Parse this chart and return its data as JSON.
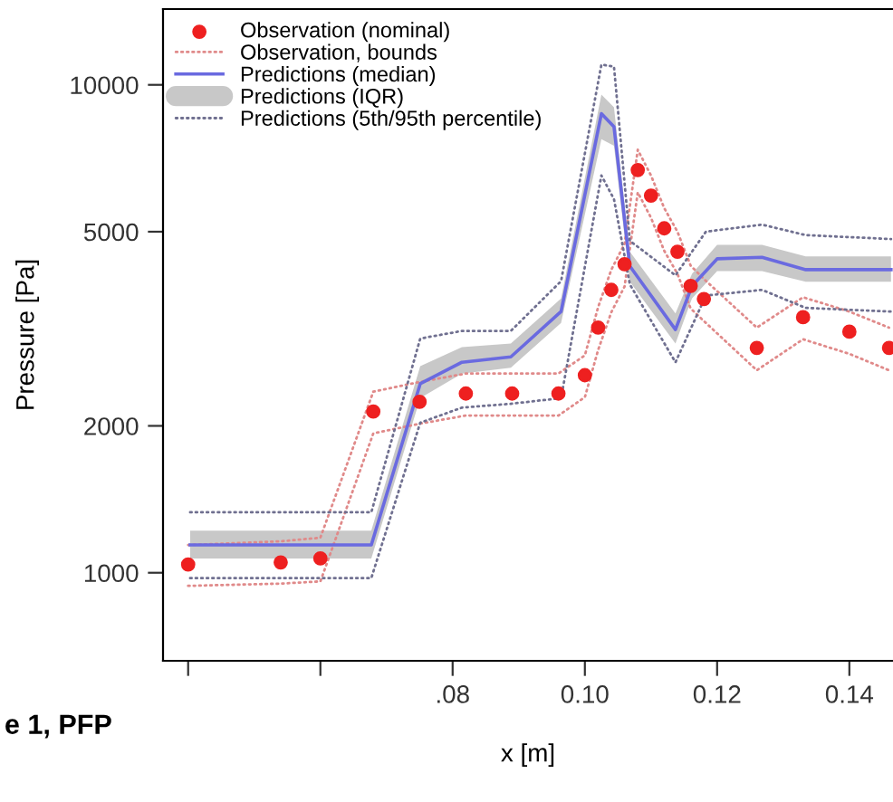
{
  "chart_data": {
    "type": "line",
    "xlabel": "x [m]",
    "ylabel": "Pressure [Pa]",
    "annotations": [
      "e 1, PFP"
    ],
    "log": "y",
    "xlim": [
      0.0362,
      0.1466
    ],
    "ylim": [
      660,
      14300
    ],
    "xticks": [
      {
        "value": 0.04,
        "label": null
      },
      {
        "value": 0.06,
        "label": null
      },
      {
        "value": 0.08,
        "label": ".08"
      },
      {
        "value": 0.1,
        "label": "0.10"
      },
      {
        "value": 0.12,
        "label": "0.12"
      },
      {
        "value": 0.14,
        "label": "0.14"
      }
    ],
    "yticks": [
      1000,
      2000,
      5000,
      10000
    ],
    "grid": false,
    "legend": "top left",
    "series": [
      {
        "name": "Observation (nominal)",
        "type": "scatter",
        "marker": "circle",
        "color": "#ee2020",
        "x": [
          0.04,
          0.054,
          0.06,
          0.068,
          0.075,
          0.082,
          0.089,
          0.096,
          0.1,
          0.102,
          0.104,
          0.106,
          0.108,
          0.11,
          0.112,
          0.114,
          0.116,
          0.118,
          0.126,
          0.133,
          0.14,
          0.146
        ],
        "values": [
          1040,
          1050,
          1070,
          2140,
          2240,
          2330,
          2330,
          2330,
          2540,
          3180,
          3800,
          4290,
          6690,
          5930,
          5080,
          4550,
          3870,
          3640,
          2890,
          3340,
          3120,
          2890
        ]
      },
      {
        "name": "Observation, bounds",
        "type": "line",
        "line_style": "dotted",
        "color": "#e08a8a",
        "x": [
          0.04,
          0.054,
          0.06,
          0.068,
          0.075,
          0.082,
          0.089,
          0.096,
          0.1,
          0.102,
          0.104,
          0.106,
          0.108,
          0.11,
          0.112,
          0.114,
          0.116,
          0.118,
          0.126,
          0.133,
          0.14,
          0.146
        ],
        "values": [
          1140,
          1160,
          1180,
          2350,
          2460,
          2560,
          2560,
          2560,
          2790,
          3500,
          4180,
          4720,
          7360,
          6520,
          5590,
          5000,
          4260,
          4000,
          3180,
          3670,
          3430,
          3180
        ]
      },
      {
        "type": "line",
        "line_style": "dotted",
        "color": "#e08a8a",
        "x": [
          0.04,
          0.054,
          0.06,
          0.068,
          0.075,
          0.082,
          0.089,
          0.096,
          0.1,
          0.102,
          0.104,
          0.106,
          0.108,
          0.11,
          0.112,
          0.114,
          0.116,
          0.118,
          0.126,
          0.133,
          0.14,
          0.146
        ],
        "values": [
          940,
          950,
          960,
          1930,
          2020,
          2100,
          2100,
          2100,
          2290,
          2860,
          3420,
          3860,
          6020,
          5340,
          4570,
          4100,
          3480,
          3280,
          2600,
          3010,
          2810,
          2600
        ]
      },
      {
        "name": "Predictions (median)",
        "line_style": "solid",
        "color": "#6a6ae0",
        "x": [
          0.0403,
          0.0677,
          0.0751,
          0.0814,
          0.0888,
          0.0964,
          0.1025,
          0.1044,
          0.1068,
          0.1137,
          0.1162,
          0.12,
          0.1268,
          0.1334,
          0.1463
        ],
        "values": [
          1140,
          1140,
          2440,
          2700,
          2770,
          3430,
          8730,
          8210,
          4250,
          3150,
          3870,
          4400,
          4430,
          4180,
          4180
        ],
        "lower": [
          1070,
          1070,
          2280,
          2560,
          2630,
          3250,
          7740,
          7500,
          3950,
          2950,
          3650,
          4150,
          4150,
          3950,
          3950
        ],
        "upper": [
          1220,
          1220,
          2650,
          2900,
          2950,
          3650,
          9550,
          9000,
          4550,
          3400,
          4100,
          4700,
          4700,
          4450,
          4450
        ]
      },
      {
        "name": "Predictions (IQR)",
        "type": "area",
        "color": "#c8c8c8"
      },
      {
        "name": "Predictions (5th/95th percentile)",
        "type": "line",
        "line_style": "dotted",
        "color": "#707090",
        "x": [
          0.0403,
          0.0677,
          0.0751,
          0.0814,
          0.0888,
          0.0964,
          0.1025,
          0.1044,
          0.1068,
          0.1137,
          0.1183,
          0.1268,
          0.1334,
          0.1463
        ],
        "values": [
          1330,
          1330,
          3020,
          3130,
          3130,
          3960,
          11000,
          10900,
          4790,
          4070,
          5000,
          5170,
          4920,
          4830
        ]
      },
      {
        "type": "line",
        "line_style": "dotted",
        "color": "#707090",
        "x": [
          0.0403,
          0.0677,
          0.0751,
          0.0814,
          0.0888,
          0.0964,
          0.1025,
          0.1044,
          0.1068,
          0.1137,
          0.1183,
          0.1268,
          0.1334,
          0.1463
        ],
        "values": [
          975,
          975,
          2030,
          2180,
          2220,
          2280,
          6520,
          5830,
          3900,
          2700,
          3700,
          3800,
          3490,
          3430
        ]
      }
    ]
  }
}
